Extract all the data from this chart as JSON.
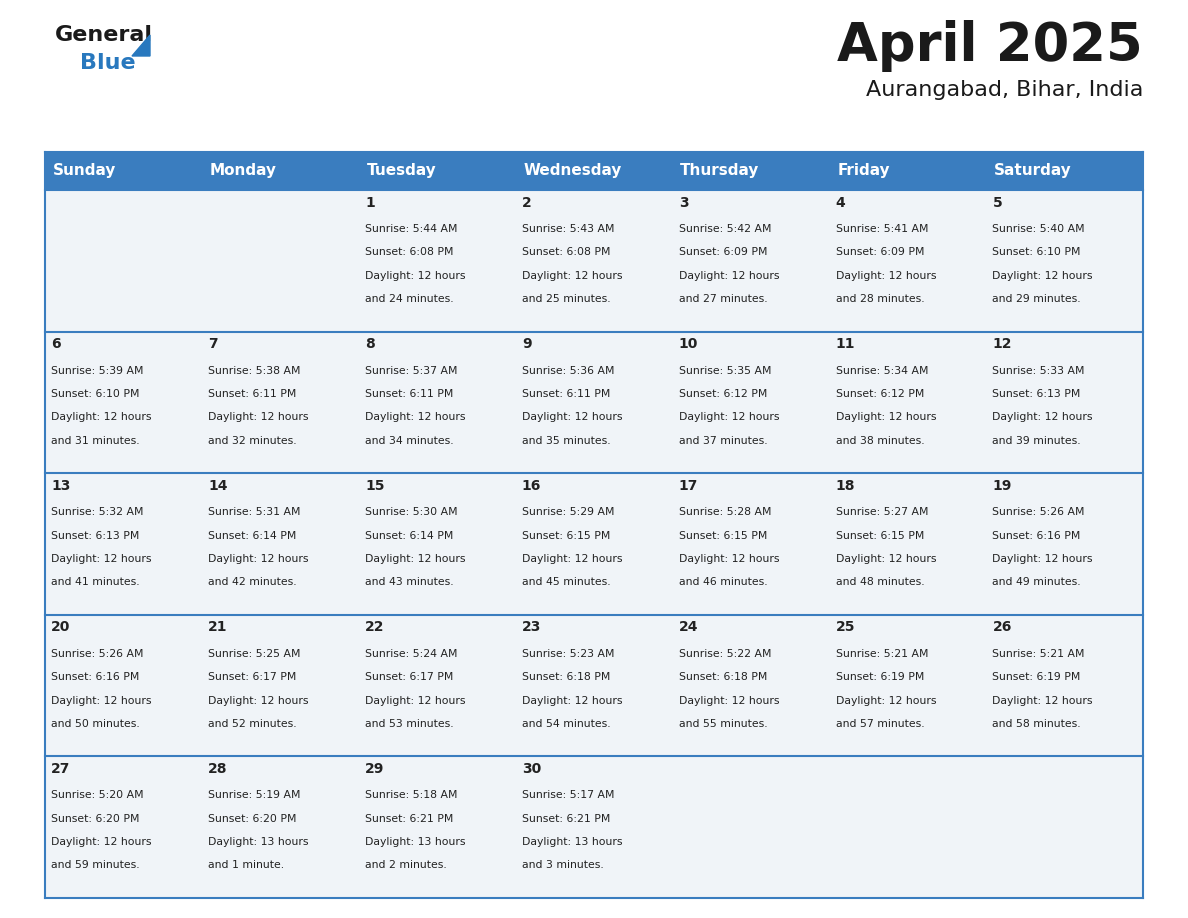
{
  "title": "April 2025",
  "subtitle": "Aurangabad, Bihar, India",
  "header_bg_color": "#3a7dbf",
  "header_text_color": "#ffffff",
  "cell_bg_color": "#f0f4f8",
  "day_names": [
    "Sunday",
    "Monday",
    "Tuesday",
    "Wednesday",
    "Thursday",
    "Friday",
    "Saturday"
  ],
  "text_color": "#222222",
  "divider_color": "#3a7dbf",
  "logo_general_color": "#1a1a1a",
  "logo_blue_color": "#2878be",
  "logo_triangle_color": "#2878be",
  "title_color": "#1a1a1a",
  "weeks": [
    [
      {
        "day": "",
        "sunrise": "",
        "sunset": "",
        "daylight": ""
      },
      {
        "day": "",
        "sunrise": "",
        "sunset": "",
        "daylight": ""
      },
      {
        "day": "1",
        "sunrise": "5:44 AM",
        "sunset": "6:08 PM",
        "daylight": "12 hours\nand 24 minutes."
      },
      {
        "day": "2",
        "sunrise": "5:43 AM",
        "sunset": "6:08 PM",
        "daylight": "12 hours\nand 25 minutes."
      },
      {
        "day": "3",
        "sunrise": "5:42 AM",
        "sunset": "6:09 PM",
        "daylight": "12 hours\nand 27 minutes."
      },
      {
        "day": "4",
        "sunrise": "5:41 AM",
        "sunset": "6:09 PM",
        "daylight": "12 hours\nand 28 minutes."
      },
      {
        "day": "5",
        "sunrise": "5:40 AM",
        "sunset": "6:10 PM",
        "daylight": "12 hours\nand 29 minutes."
      }
    ],
    [
      {
        "day": "6",
        "sunrise": "5:39 AM",
        "sunset": "6:10 PM",
        "daylight": "12 hours\nand 31 minutes."
      },
      {
        "day": "7",
        "sunrise": "5:38 AM",
        "sunset": "6:11 PM",
        "daylight": "12 hours\nand 32 minutes."
      },
      {
        "day": "8",
        "sunrise": "5:37 AM",
        "sunset": "6:11 PM",
        "daylight": "12 hours\nand 34 minutes."
      },
      {
        "day": "9",
        "sunrise": "5:36 AM",
        "sunset": "6:11 PM",
        "daylight": "12 hours\nand 35 minutes."
      },
      {
        "day": "10",
        "sunrise": "5:35 AM",
        "sunset": "6:12 PM",
        "daylight": "12 hours\nand 37 minutes."
      },
      {
        "day": "11",
        "sunrise": "5:34 AM",
        "sunset": "6:12 PM",
        "daylight": "12 hours\nand 38 minutes."
      },
      {
        "day": "12",
        "sunrise": "5:33 AM",
        "sunset": "6:13 PM",
        "daylight": "12 hours\nand 39 minutes."
      }
    ],
    [
      {
        "day": "13",
        "sunrise": "5:32 AM",
        "sunset": "6:13 PM",
        "daylight": "12 hours\nand 41 minutes."
      },
      {
        "day": "14",
        "sunrise": "5:31 AM",
        "sunset": "6:14 PM",
        "daylight": "12 hours\nand 42 minutes."
      },
      {
        "day": "15",
        "sunrise": "5:30 AM",
        "sunset": "6:14 PM",
        "daylight": "12 hours\nand 43 minutes."
      },
      {
        "day": "16",
        "sunrise": "5:29 AM",
        "sunset": "6:15 PM",
        "daylight": "12 hours\nand 45 minutes."
      },
      {
        "day": "17",
        "sunrise": "5:28 AM",
        "sunset": "6:15 PM",
        "daylight": "12 hours\nand 46 minutes."
      },
      {
        "day": "18",
        "sunrise": "5:27 AM",
        "sunset": "6:15 PM",
        "daylight": "12 hours\nand 48 minutes."
      },
      {
        "day": "19",
        "sunrise": "5:26 AM",
        "sunset": "6:16 PM",
        "daylight": "12 hours\nand 49 minutes."
      }
    ],
    [
      {
        "day": "20",
        "sunrise": "5:26 AM",
        "sunset": "6:16 PM",
        "daylight": "12 hours\nand 50 minutes."
      },
      {
        "day": "21",
        "sunrise": "5:25 AM",
        "sunset": "6:17 PM",
        "daylight": "12 hours\nand 52 minutes."
      },
      {
        "day": "22",
        "sunrise": "5:24 AM",
        "sunset": "6:17 PM",
        "daylight": "12 hours\nand 53 minutes."
      },
      {
        "day": "23",
        "sunrise": "5:23 AM",
        "sunset": "6:18 PM",
        "daylight": "12 hours\nand 54 minutes."
      },
      {
        "day": "24",
        "sunrise": "5:22 AM",
        "sunset": "6:18 PM",
        "daylight": "12 hours\nand 55 minutes."
      },
      {
        "day": "25",
        "sunrise": "5:21 AM",
        "sunset": "6:19 PM",
        "daylight": "12 hours\nand 57 minutes."
      },
      {
        "day": "26",
        "sunrise": "5:21 AM",
        "sunset": "6:19 PM",
        "daylight": "12 hours\nand 58 minutes."
      }
    ],
    [
      {
        "day": "27",
        "sunrise": "5:20 AM",
        "sunset": "6:20 PM",
        "daylight": "12 hours\nand 59 minutes."
      },
      {
        "day": "28",
        "sunrise": "5:19 AM",
        "sunset": "6:20 PM",
        "daylight": "13 hours\nand 1 minute."
      },
      {
        "day": "29",
        "sunrise": "5:18 AM",
        "sunset": "6:21 PM",
        "daylight": "13 hours\nand 2 minutes."
      },
      {
        "day": "30",
        "sunrise": "5:17 AM",
        "sunset": "6:21 PM",
        "daylight": "13 hours\nand 3 minutes."
      },
      {
        "day": "",
        "sunrise": "",
        "sunset": "",
        "daylight": ""
      },
      {
        "day": "",
        "sunrise": "",
        "sunset": "",
        "daylight": ""
      },
      {
        "day": "",
        "sunrise": "",
        "sunset": "",
        "daylight": ""
      }
    ]
  ]
}
